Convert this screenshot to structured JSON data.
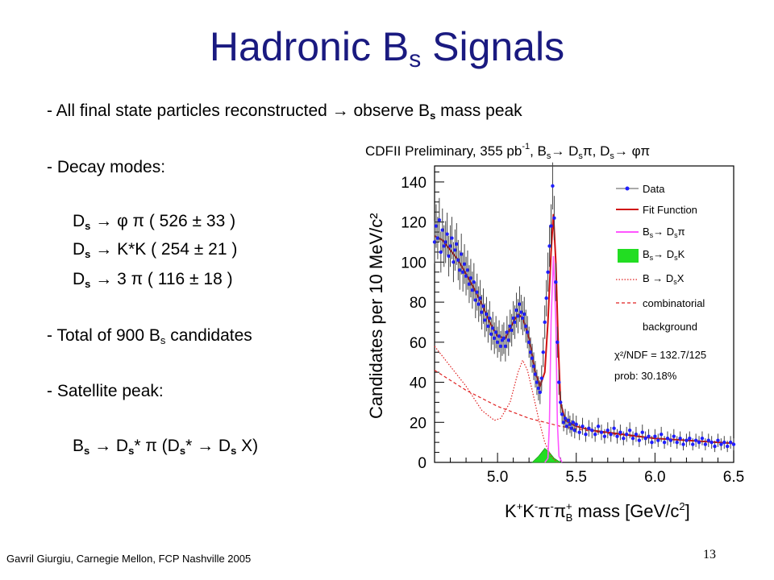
{
  "slide": {
    "title_main": "Hadronic B",
    "title_sub": "s",
    "title_end": " Signals",
    "footer": "Gavril Giurgiu, Carnegie Mellon, FCP Nashville 2005",
    "page_number": "13",
    "title_color": "#1a1a80"
  },
  "bullets": {
    "l1_a": "- All final state particles reconstructed ",
    "l1_arrow": "→",
    "l1_b": " observe B",
    "l1_sub": "s",
    "l1_c": " mass peak",
    "l2": "- Decay modes:",
    "m1_a": "D",
    "m1_sub": "s",
    "m1_b": " → φ π ( 526 ± 33 )",
    "m2_a": "D",
    "m2_sub": "s",
    "m2_b": " → K*K ( 254 ± 21 )",
    "m3_a": "D",
    "m3_sub": "s",
    "m3_b": " → 3 π ( 116 ± 18 )",
    "l3_a": "- Total of 900 B",
    "l3_sub": "s",
    "l3_b": " candidates",
    "l4": "- Satellite peak:",
    "s_a": "B",
    "s_sub1": "s",
    "s_b": " → D",
    "s_sub2": "s",
    "s_c": "* π (D",
    "s_sub3": "s",
    "s_d": "* → D",
    "s_sub4": "s",
    "s_e": " X)"
  },
  "chart_data": {
    "type": "scatter",
    "title_parts": [
      "CDFII Preliminary, 355 pb",
      "-1",
      ", B",
      "s",
      "→ D",
      "s",
      "π, D",
      "s",
      "→ φπ"
    ],
    "xlabel_parts": [
      "K",
      "+",
      "K",
      "-",
      "π",
      "-",
      "π",
      "+",
      "B",
      " mass [GeV/c",
      "2",
      "]"
    ],
    "ylabel": "Candidates per 10 MeV/c²",
    "xlim": [
      4.6,
      6.5
    ],
    "ylim": [
      0,
      148
    ],
    "xticks": [
      5.0,
      5.5,
      6.0,
      6.5
    ],
    "yticks": [
      0,
      20,
      40,
      60,
      80,
      100,
      120,
      140
    ],
    "legend_position": "top-right",
    "legend": [
      {
        "label": "Data",
        "style": "points",
        "color": "#1f1fff"
      },
      {
        "label": "Fit Function",
        "style": "solid",
        "color": "#d01010"
      },
      {
        "label_parts": [
          "B",
          "s",
          "→ D",
          "s",
          "π"
        ],
        "style": "solid",
        "color": "#ff55ff"
      },
      {
        "label_parts": [
          "B",
          "s",
          "→ D",
          "s",
          "K"
        ],
        "style": "fill",
        "color": "#22dd22"
      },
      {
        "label_parts": [
          "B → D",
          "s",
          "X"
        ],
        "style": "dotted",
        "color": "#e02020"
      },
      {
        "label": "combinatorial",
        "style": "dashed",
        "color": "#e02020"
      },
      {
        "label": "background",
        "style": "none",
        "color": "#000000"
      }
    ],
    "stats": {
      "chi2": "χ²/NDF = 132.7/125",
      "prob": "prob:  30.18%"
    },
    "data_points": [
      [
        4.6,
        110
      ],
      [
        4.61,
        118
      ],
      [
        4.62,
        112
      ],
      [
        4.63,
        121
      ],
      [
        4.64,
        105
      ],
      [
        4.65,
        116
      ],
      [
        4.66,
        108
      ],
      [
        4.67,
        110
      ],
      [
        4.68,
        114
      ],
      [
        4.69,
        103
      ],
      [
        4.7,
        108
      ],
      [
        4.71,
        112
      ],
      [
        4.72,
        100
      ],
      [
        4.73,
        106
      ],
      [
        4.74,
        109
      ],
      [
        4.75,
        101
      ],
      [
        4.76,
        96
      ],
      [
        4.77,
        104
      ],
      [
        4.78,
        95
      ],
      [
        4.79,
        99
      ],
      [
        4.8,
        93
      ],
      [
        4.81,
        96
      ],
      [
        4.82,
        89
      ],
      [
        4.83,
        92
      ],
      [
        4.84,
        86
      ],
      [
        4.85,
        90
      ],
      [
        4.86,
        81
      ],
      [
        4.87,
        85
      ],
      [
        4.88,
        79
      ],
      [
        4.89,
        82
      ],
      [
        4.9,
        75
      ],
      [
        4.91,
        78
      ],
      [
        4.92,
        71
      ],
      [
        4.93,
        74
      ],
      [
        4.94,
        68
      ],
      [
        4.95,
        72
      ],
      [
        4.96,
        64
      ],
      [
        4.97,
        67
      ],
      [
        4.98,
        62
      ],
      [
        4.99,
        65
      ],
      [
        5.0,
        60
      ],
      [
        5.01,
        63
      ],
      [
        5.02,
        58
      ],
      [
        5.03,
        61
      ],
      [
        5.04,
        62
      ],
      [
        5.05,
        58
      ],
      [
        5.06,
        65
      ],
      [
        5.07,
        61
      ],
      [
        5.08,
        68
      ],
      [
        5.09,
        66
      ],
      [
        5.1,
        72
      ],
      [
        5.11,
        70
      ],
      [
        5.12,
        76
      ],
      [
        5.13,
        73
      ],
      [
        5.14,
        79
      ],
      [
        5.15,
        75
      ],
      [
        5.16,
        72
      ],
      [
        5.17,
        74
      ],
      [
        5.18,
        68
      ],
      [
        5.19,
        65
      ],
      [
        5.2,
        60
      ],
      [
        5.21,
        55
      ],
      [
        5.22,
        52
      ],
      [
        5.23,
        48
      ],
      [
        5.24,
        44
      ],
      [
        5.25,
        40
      ],
      [
        5.26,
        37
      ],
      [
        5.27,
        35
      ],
      [
        5.28,
        42
      ],
      [
        5.29,
        55
      ],
      [
        5.3,
        70
      ],
      [
        5.31,
        82
      ],
      [
        5.32,
        95
      ],
      [
        5.33,
        108
      ],
      [
        5.34,
        118
      ],
      [
        5.35,
        138
      ],
      [
        5.36,
        122
      ],
      [
        5.37,
        90
      ],
      [
        5.38,
        60
      ],
      [
        5.39,
        40
      ],
      [
        5.4,
        30
      ],
      [
        5.41,
        24
      ],
      [
        5.42,
        20
      ],
      [
        5.43,
        22
      ],
      [
        5.44,
        18
      ],
      [
        5.45,
        21
      ],
      [
        5.46,
        19
      ],
      [
        5.47,
        17
      ],
      [
        5.48,
        20
      ],
      [
        5.49,
        16
      ],
      [
        5.5,
        19
      ],
      [
        5.52,
        15
      ],
      [
        5.54,
        18
      ],
      [
        5.56,
        14
      ],
      [
        5.58,
        17
      ],
      [
        5.6,
        16
      ],
      [
        5.62,
        14
      ],
      [
        5.64,
        18
      ],
      [
        5.66,
        15
      ],
      [
        5.68,
        13
      ],
      [
        5.7,
        16
      ],
      [
        5.72,
        14
      ],
      [
        5.74,
        17
      ],
      [
        5.76,
        13
      ],
      [
        5.78,
        15
      ],
      [
        5.8,
        12
      ],
      [
        5.82,
        14
      ],
      [
        5.84,
        16
      ],
      [
        5.86,
        12
      ],
      [
        5.88,
        14
      ],
      [
        5.9,
        11
      ],
      [
        5.92,
        15
      ],
      [
        5.94,
        12
      ],
      [
        5.96,
        13
      ],
      [
        5.98,
        10
      ],
      [
        6.0,
        13
      ],
      [
        6.02,
        11
      ],
      [
        6.04,
        14
      ],
      [
        6.06,
        10
      ],
      [
        6.08,
        12
      ],
      [
        6.1,
        11
      ],
      [
        6.12,
        13
      ],
      [
        6.14,
        10
      ],
      [
        6.16,
        12
      ],
      [
        6.18,
        9
      ],
      [
        6.2,
        11
      ],
      [
        6.22,
        12
      ],
      [
        6.24,
        9
      ],
      [
        6.26,
        11
      ],
      [
        6.28,
        10
      ],
      [
        6.3,
        12
      ],
      [
        6.32,
        9
      ],
      [
        6.34,
        11
      ],
      [
        6.36,
        10
      ],
      [
        6.38,
        8
      ],
      [
        6.4,
        11
      ],
      [
        6.42,
        9
      ],
      [
        6.44,
        10
      ],
      [
        6.46,
        8
      ],
      [
        6.48,
        10
      ],
      [
        6.5,
        9
      ]
    ],
    "fit_function": [
      [
        4.6,
        113
      ],
      [
        4.65,
        111
      ],
      [
        4.7,
        106
      ],
      [
        4.75,
        101
      ],
      [
        4.8,
        94
      ],
      [
        4.85,
        87
      ],
      [
        4.9,
        79
      ],
      [
        4.95,
        70
      ],
      [
        5.0,
        63
      ],
      [
        5.05,
        62
      ],
      [
        5.1,
        70
      ],
      [
        5.13,
        74
      ],
      [
        5.16,
        72
      ],
      [
        5.2,
        62
      ],
      [
        5.24,
        45
      ],
      [
        5.27,
        38
      ],
      [
        5.3,
        45
      ],
      [
        5.32,
        70
      ],
      [
        5.34,
        105
      ],
      [
        5.355,
        124
      ],
      [
        5.37,
        100
      ],
      [
        5.385,
        60
      ],
      [
        5.4,
        30
      ],
      [
        5.43,
        21
      ],
      [
        5.5,
        18
      ],
      [
        5.6,
        16
      ],
      [
        5.7,
        15
      ],
      [
        5.8,
        14
      ],
      [
        5.9,
        13
      ],
      [
        6.0,
        12
      ],
      [
        6.1,
        11.5
      ],
      [
        6.2,
        11
      ],
      [
        6.3,
        10.5
      ],
      [
        6.4,
        10
      ],
      [
        6.5,
        9.5
      ]
    ],
    "bs_dspi": [
      [
        5.3,
        0
      ],
      [
        5.32,
        2
      ],
      [
        5.33,
        20
      ],
      [
        5.34,
        70
      ],
      [
        5.355,
        103
      ],
      [
        5.37,
        70
      ],
      [
        5.38,
        20
      ],
      [
        5.39,
        3
      ],
      [
        5.41,
        0
      ]
    ],
    "bs_dsk": [
      [
        5.22,
        0
      ],
      [
        5.26,
        3
      ],
      [
        5.3,
        7
      ],
      [
        5.33,
        5
      ],
      [
        5.36,
        2
      ],
      [
        5.4,
        0
      ]
    ],
    "b_dsx": [
      [
        4.6,
        58
      ],
      [
        4.7,
        48
      ],
      [
        4.8,
        38
      ],
      [
        4.9,
        26
      ],
      [
        4.98,
        21
      ],
      [
        5.02,
        22
      ],
      [
        5.08,
        30
      ],
      [
        5.13,
        45
      ],
      [
        5.16,
        51
      ],
      [
        5.19,
        46
      ],
      [
        5.22,
        36
      ],
      [
        5.26,
        22
      ],
      [
        5.3,
        10
      ],
      [
        5.34,
        3
      ],
      [
        5.38,
        0
      ]
    ],
    "combinatorial": [
      [
        4.6,
        46
      ],
      [
        4.8,
        36
      ],
      [
        5.0,
        28
      ],
      [
        5.2,
        22
      ],
      [
        5.4,
        18
      ],
      [
        5.6,
        15.5
      ],
      [
        5.8,
        13.5
      ],
      [
        6.0,
        12
      ],
      [
        6.2,
        11
      ],
      [
        6.4,
        10
      ],
      [
        6.5,
        9.5
      ]
    ]
  }
}
